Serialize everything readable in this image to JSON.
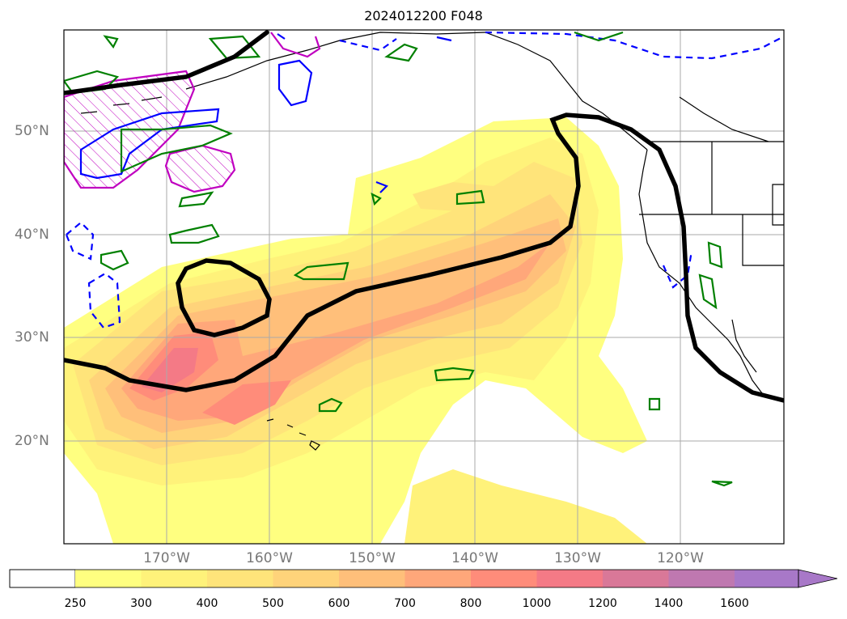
{
  "title": "2024012200 F048",
  "lon_labels": [
    "170°W",
    "160°W",
    "150°W",
    "140°W",
    "130°W",
    "120°W"
  ],
  "lat_labels": [
    "50°N",
    "40°N",
    "30°N",
    "20°N"
  ],
  "colorbar": {
    "ticks": [
      "250",
      "300",
      "400",
      "500",
      "600",
      "700",
      "800",
      "1000",
      "1200",
      "1400",
      "1600"
    ],
    "colors": [
      "#ffff80",
      "#fff27a",
      "#ffe47a",
      "#ffd37a",
      "#ffbf7a",
      "#ffa77a",
      "#ff8c7a",
      "#f47a86",
      "#d97898",
      "#bf78b0",
      "#a878c8"
    ],
    "extend": "max"
  },
  "map": {
    "region": "North Pacific",
    "colors": {
      "ivt_fill": "#ffd37a",
      "black_contour": "#000000",
      "green_contour": "#008000",
      "blue_contour": "#0000ff",
      "magenta_contour": "#c000c0",
      "grid": "#aaaaaa"
    }
  }
}
